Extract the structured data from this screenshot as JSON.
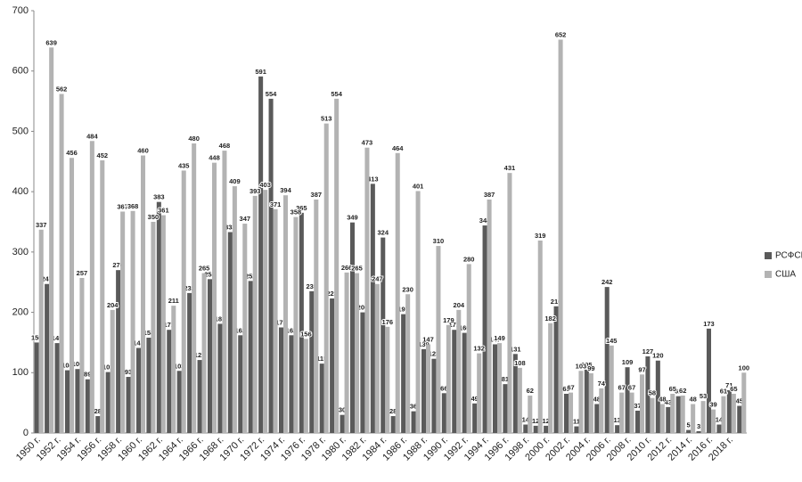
{
  "chart_data": {
    "type": "bar",
    "categories": [
      "1950 г.",
      null,
      "1952 г.",
      null,
      "1954 г.",
      null,
      "1956 г.",
      null,
      "1958 г.",
      null,
      "1960 г.",
      null,
      "1962 г.",
      null,
      "1964 г.",
      null,
      "1966 г.",
      null,
      "1968 г.",
      null,
      "1970 г.",
      null,
      "1972 г.",
      null,
      "1974 г.",
      null,
      "1976 г.",
      null,
      "1978 г.",
      null,
      "1980 г.",
      null,
      "1982 г.",
      null,
      "1984 г.",
      null,
      "1986 г.",
      null,
      "1988 г.",
      null,
      "1990 г.",
      null,
      "1992 г.",
      null,
      "1994 г.",
      null,
      "1996 г.",
      null,
      "1998 г.",
      null,
      "2000 г.",
      null,
      "2002 г.",
      null,
      "2004 г.",
      null,
      "2006 г.",
      null,
      "2008 г.",
      null,
      "2010 г.",
      null,
      "2012 г.",
      null,
      "2014 г.",
      null,
      "2016 г.",
      null,
      "2018 г.",
      null
    ],
    "series": [
      {
        "name": "РСФСР",
        "color": "#5a5a5a",
        "values": [
          150,
          247,
          149,
          104,
          106,
          89,
          28,
          101,
          270,
          93,
          141,
          158,
          383,
          171,
          103,
          232,
          121,
          255,
          181,
          333,
          162,
          252,
          591,
          554,
          175,
          162,
          365,
          235,
          115,
          223,
          30,
          349,
          200,
          413,
          324,
          28,
          197,
          36,
          139,
          123,
          66,
          171,
          166,
          49,
          344,
          147,
          81,
          131,
          14,
          12,
          12,
          210,
          65,
          11,
          105,
          48,
          242,
          13,
          109,
          37,
          127,
          120,
          43,
          61,
          5,
          3,
          173,
          14,
          71,
          45
        ]
      },
      {
        "name": "США",
        "color": "#b3b3b3",
        "values": [
          337,
          639,
          562,
          456,
          257,
          484,
          452,
          204,
          367,
          368,
          460,
          350,
          361,
          211,
          435,
          480,
          265,
          448,
          468,
          409,
          347,
          393,
          403,
          371,
          394,
          358,
          156,
          387,
          513,
          554,
          266,
          265,
          473,
          247,
          176,
          464,
          230,
          401,
          147,
          310,
          179,
          204,
          280,
          132,
          387,
          149,
          431,
          108,
          62,
          319,
          182,
          652,
          67,
          103,
          99,
          74,
          145,
          67,
          67,
          97,
          58,
          48,
          65,
          62,
          48,
          53,
          39,
          61,
          65,
          100
        ]
      }
    ],
    "ylim": [
      0,
      700
    ],
    "yticks": [
      0,
      100,
      200,
      300,
      400,
      500,
      600,
      700
    ],
    "grid": false,
    "legend": "right"
  }
}
